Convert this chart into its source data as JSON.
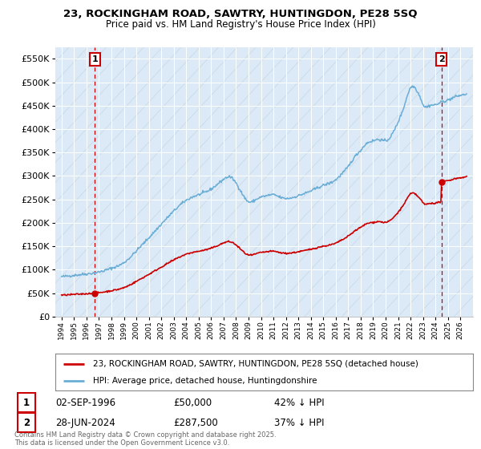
{
  "title_line1": "23, ROCKINGHAM ROAD, SAWTRY, HUNTINGDON, PE28 5SQ",
  "title_line2": "Price paid vs. HM Land Registry's House Price Index (HPI)",
  "legend_line1": "23, ROCKINGHAM ROAD, SAWTRY, HUNTINGDON, PE28 5SQ (detached house)",
  "legend_line2": "HPI: Average price, detached house, Huntingdonshire",
  "annotation1_date": "02-SEP-1996",
  "annotation1_price": "£50,000",
  "annotation1_hpi": "42% ↓ HPI",
  "annotation2_date": "28-JUN-2024",
  "annotation2_price": "£287,500",
  "annotation2_hpi": "37% ↓ HPI",
  "copyright_text": "Contains HM Land Registry data © Crown copyright and database right 2025.\nThis data is licensed under the Open Government Licence v3.0.",
  "sale1_year": 1996.67,
  "sale1_price": 50000,
  "sale2_year": 2024.49,
  "sale2_price": 287500,
  "hpi_line_color": "#6aaed6",
  "sale_line_color": "#cc0000",
  "background_color": "#dce9f7",
  "annotation_box_color": "#cc0000",
  "ylim_max": 575000,
  "xlim_min": 1993.5,
  "xlim_max": 2027.0,
  "ytick_vals": [
    0,
    50000,
    100000,
    150000,
    200000,
    250000,
    300000,
    350000,
    400000,
    450000,
    500000,
    550000
  ],
  "ytick_labels": [
    "£0",
    "£50K",
    "£100K",
    "£150K",
    "£200K",
    "£250K",
    "£300K",
    "£350K",
    "£400K",
    "£450K",
    "£500K",
    "£550K"
  ]
}
